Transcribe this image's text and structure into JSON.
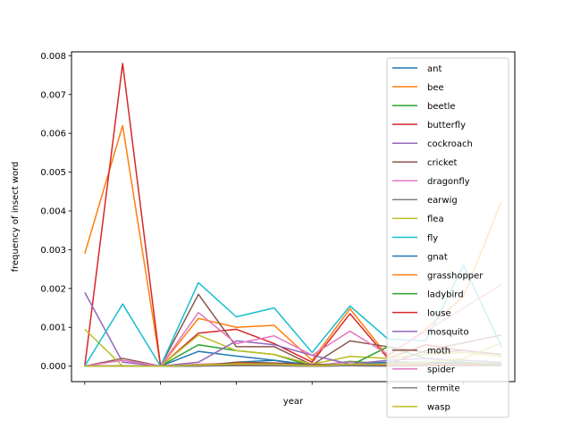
{
  "chart_data": {
    "type": "line",
    "xlabel": "year",
    "ylabel": "frequency of insect word",
    "ylim": [
      -0.0004,
      0.0081
    ],
    "xlim": [
      -0.35,
      11.35
    ],
    "x_tick_positions": [
      0,
      2,
      4,
      6,
      8,
      10
    ],
    "x_tick_labels": [
      "",
      "",
      "",
      "",
      "",
      ""
    ],
    "y_ticks": [
      0.0,
      0.001,
      0.002,
      0.003,
      0.004,
      0.005,
      0.006,
      0.007,
      0.008
    ],
    "y_tick_labels": [
      "0.000",
      "0.001",
      "0.002",
      "0.003",
      "0.004",
      "0.005",
      "0.006",
      "0.007",
      "0.008"
    ],
    "legend_position": "right",
    "grid": false,
    "x": [
      0,
      1,
      2,
      3,
      4,
      5,
      6,
      7,
      8,
      9,
      10,
      11
    ],
    "series": [
      {
        "name": "ant",
        "color": "#1f77b4",
        "values": [
          0.0,
          0.0,
          0.0,
          0.00038,
          0.00026,
          0.00015,
          3e-05,
          2e-05,
          2e-05,
          4e-05,
          3e-05,
          2e-05
        ]
      },
      {
        "name": "bee",
        "color": "#ff7f0e",
        "values": [
          0.0029,
          0.0062,
          0.0,
          0.00123,
          0.001,
          0.00105,
          0.00015,
          0.00148,
          0.00025,
          0.00095,
          0.0018,
          0.00425
        ]
      },
      {
        "name": "beetle",
        "color": "#2ca02c",
        "values": [
          0.0,
          0.0,
          0.0,
          0.00055,
          0.0004,
          0.0003,
          0.0,
          0.00012,
          6e-05,
          8e-05,
          6e-05,
          4e-05
        ]
      },
      {
        "name": "butterfly",
        "color": "#d62728",
        "values": [
          0.0,
          0.0078,
          0.0,
          0.00085,
          0.00095,
          0.00058,
          0.0001,
          0.00135,
          0.0002,
          0.00055,
          0.0004,
          0.0003
        ]
      },
      {
        "name": "cockroach",
        "color": "#9467bd",
        "values": [
          0.0019,
          0.0001,
          0.0,
          2e-05,
          2e-05,
          1e-05,
          0.0,
          1e-05,
          0.0,
          1e-05,
          1e-05,
          1e-05
        ]
      },
      {
        "name": "cricket",
        "color": "#8c564b",
        "values": [
          0.0,
          0.0002,
          0.0,
          0.00185,
          0.0005,
          0.0005,
          3e-05,
          0.00065,
          0.0005,
          0.00035,
          0.0004,
          0.0003
        ]
      },
      {
        "name": "dragonfly",
        "color": "#e377c2",
        "values": [
          0.0,
          0.0,
          0.0,
          5e-05,
          8e-05,
          8e-05,
          2e-05,
          0.0001,
          6e-05,
          0.0001,
          8e-05,
          5e-05
        ]
      },
      {
        "name": "earwig",
        "color": "#7f7f7f",
        "values": [
          0.0,
          0.0,
          0.0,
          2e-05,
          2e-05,
          1e-05,
          0.0,
          1e-05,
          1e-05,
          1e-05,
          1e-05,
          1e-05
        ]
      },
      {
        "name": "flea",
        "color": "#bcbd22",
        "values": [
          0.00095,
          0.0,
          0.0,
          0.0008,
          0.0004,
          0.0003,
          5e-05,
          0.00025,
          0.0002,
          0.0003,
          0.00035,
          0.00025
        ]
      },
      {
        "name": "fly",
        "color": "#17becf",
        "values": [
          0.0,
          0.0016,
          0.0,
          0.00215,
          0.00127,
          0.0015,
          0.00035,
          0.00155,
          0.0007,
          0.00065,
          0.0026,
          0.0005
        ]
      },
      {
        "name": "gnat",
        "color": "#1f77b4",
        "values": [
          0.0,
          0.0,
          0.0,
          0.0,
          0.0001,
          0.00015,
          0.0,
          5e-05,
          0.0001,
          0.0001,
          8e-05,
          5e-05
        ]
      },
      {
        "name": "grasshopper",
        "color": "#ff7f0e",
        "values": [
          0.0,
          0.0,
          0.0,
          3e-05,
          8e-05,
          6e-05,
          0.0,
          4e-05,
          3e-05,
          4e-05,
          5e-05,
          8e-05
        ]
      },
      {
        "name": "ladybird",
        "color": "#2ca02c",
        "values": [
          0.0,
          0.0,
          0.0,
          3e-05,
          2e-05,
          2e-05,
          0.0,
          1e-05,
          0.0005,
          0.0002,
          0.0001,
          5e-05
        ]
      },
      {
        "name": "louse",
        "color": "#d62728",
        "values": [
          0.0,
          0.0,
          0.0,
          3e-05,
          3e-05,
          2e-05,
          0.0,
          2e-05,
          2e-05,
          3e-05,
          3e-05,
          2e-05
        ]
      },
      {
        "name": "mosquito",
        "color": "#9467bd",
        "values": [
          0.0,
          0.0,
          0.0,
          0.0001,
          0.00065,
          0.00055,
          0.00028,
          5e-05,
          0.00015,
          0.0002,
          0.00015,
          0.0001
        ]
      },
      {
        "name": "moth",
        "color": "#8c564b",
        "values": [
          0.0,
          0.0,
          0.0,
          0.0,
          0.0001,
          8e-05,
          5e-05,
          3e-05,
          5e-05,
          0.0004,
          0.0006,
          0.0008
        ]
      },
      {
        "name": "spider",
        "color": "#e377c2",
        "values": [
          0.0,
          0.00015,
          0.0,
          0.00138,
          0.00058,
          0.00078,
          0.00028,
          0.0009,
          0.0003,
          0.0009,
          0.0015,
          0.0021
        ]
      },
      {
        "name": "termite",
        "color": "#7f7f7f",
        "values": [
          0.0,
          0.0,
          0.0,
          0.0,
          1e-05,
          1e-05,
          0.0,
          1e-05,
          0.0,
          1e-05,
          1e-05,
          1e-05
        ]
      },
      {
        "name": "wasp",
        "color": "#bcbd22",
        "values": [
          0.0,
          0.0,
          0.0,
          3e-05,
          5e-05,
          5e-05,
          1e-05,
          5e-05,
          5e-05,
          0.0001,
          0.0002,
          0.0006
        ]
      }
    ]
  }
}
